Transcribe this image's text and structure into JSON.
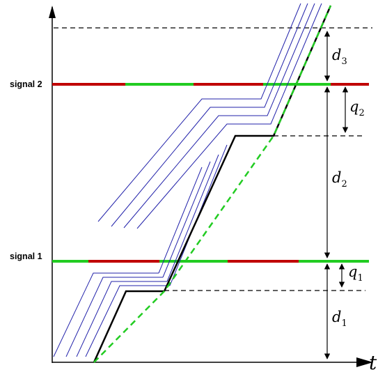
{
  "signals": [
    {
      "label": "signal 1"
    },
    {
      "label": "signal 2"
    }
  ],
  "axis": {
    "x_label": "t"
  },
  "dimensions": [
    {
      "symbol": "d",
      "sub": "3"
    },
    {
      "symbol": "q",
      "sub": "2"
    },
    {
      "symbol": "d",
      "sub": "2"
    },
    {
      "symbol": "q",
      "sub": "1"
    },
    {
      "symbol": "d",
      "sub": "1"
    }
  ],
  "colors": {
    "red_phase": "#c00000",
    "green_phase": "#22cc22",
    "trajectory": "#000000",
    "dashed_trajectory": "#22cc22",
    "neighbor_trajectories": "#2222aa",
    "axes": "#000000"
  }
}
